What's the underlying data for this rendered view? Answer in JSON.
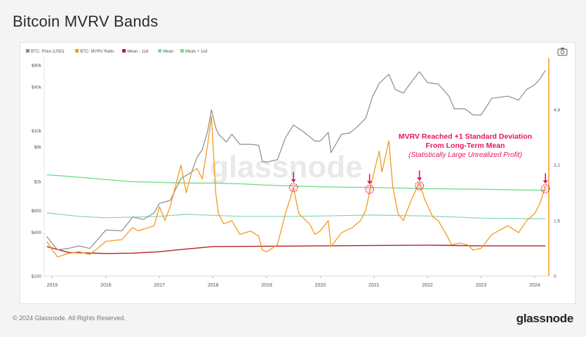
{
  "title": "Bitcoin MVRV Bands",
  "footer": {
    "copyright": "© 2024 Glassnode. All Rights Reserved.",
    "brand": "glassnode"
  },
  "watermark": "glassnode",
  "icons": {
    "camera": "camera-icon"
  },
  "colors": {
    "price": "#8c8c8c",
    "mvrv": "#f39a1e",
    "mean_minus_1sd": "#b3202a",
    "mean": "#7fd6b2",
    "mean_plus_1sd": "#74dd84",
    "annotation": "#e8145f"
  },
  "annotation": {
    "line1": "MVRV Reached +1 Standard Deviation",
    "line2": "From Long-Term Mean",
    "line3": "(Statistically Large Unrealized Profit)"
  },
  "chart_data": {
    "type": "line",
    "legend": [
      {
        "name": "BTC: Price (USD)",
        "color": "#8c8c8c"
      },
      {
        "name": "BTC: MVRV Ratio",
        "color": "#f39a1e"
      },
      {
        "name": "Mean - 1sd",
        "color": "#b3202a"
      },
      {
        "name": "Mean",
        "color": "#7fd6b2"
      },
      {
        "name": "Mean + 1sd",
        "color": "#74dd84"
      }
    ],
    "legend_position": "top-left",
    "x_ticks": [
      "2015",
      "2016",
      "2017",
      "2018",
      "2019",
      "2020",
      "2021",
      "2022",
      "2023",
      "2024"
    ],
    "y_left": {
      "scale": "log",
      "ticks": [
        "$100",
        "$400",
        "$800",
        "$2k",
        "$6k",
        "$10k",
        "$40k",
        "$80k"
      ],
      "tick_values": [
        100,
        400,
        800,
        2000,
        6000,
        10000,
        40000,
        80000
      ]
    },
    "y_right": {
      "scale": "linear",
      "ticks": [
        "0",
        "1.6",
        "3.2",
        "4.8"
      ],
      "tick_values": [
        0,
        1.6,
        3.2,
        4.8
      ],
      "range": [
        0,
        6.2
      ]
    },
    "series": [
      {
        "name": "BTC: Price (USD)",
        "axis": "left",
        "points": [
          [
            2014.9,
            350
          ],
          [
            2015.0,
            280
          ],
          [
            2015.1,
            230
          ],
          [
            2015.3,
            240
          ],
          [
            2015.5,
            260
          ],
          [
            2015.7,
            240
          ],
          [
            2015.85,
            320
          ],
          [
            2016.0,
            430
          ],
          [
            2016.3,
            420
          ],
          [
            2016.5,
            650
          ],
          [
            2016.7,
            600
          ],
          [
            2016.9,
            740
          ],
          [
            2017.0,
            1000
          ],
          [
            2017.2,
            1100
          ],
          [
            2017.4,
            2200
          ],
          [
            2017.6,
            2700
          ],
          [
            2017.7,
            4300
          ],
          [
            2017.8,
            5500
          ],
          [
            2017.9,
            10000
          ],
          [
            2017.97,
            19500
          ],
          [
            2018.05,
            11000
          ],
          [
            2018.1,
            9000
          ],
          [
            2018.25,
            7000
          ],
          [
            2018.35,
            9000
          ],
          [
            2018.5,
            6500
          ],
          [
            2018.7,
            6500
          ],
          [
            2018.85,
            6300
          ],
          [
            2018.92,
            3800
          ],
          [
            2019.0,
            3700
          ],
          [
            2019.2,
            4000
          ],
          [
            2019.35,
            8000
          ],
          [
            2019.5,
            12000
          ],
          [
            2019.7,
            9500
          ],
          [
            2019.9,
            7200
          ],
          [
            2020.0,
            7200
          ],
          [
            2020.15,
            9500
          ],
          [
            2020.2,
            5000
          ],
          [
            2020.4,
            9000
          ],
          [
            2020.55,
            9300
          ],
          [
            2020.7,
            11500
          ],
          [
            2020.85,
            15000
          ],
          [
            2020.97,
            29000
          ],
          [
            2021.1,
            45000
          ],
          [
            2021.28,
            60000
          ],
          [
            2021.4,
            37000
          ],
          [
            2021.55,
            33000
          ],
          [
            2021.7,
            47000
          ],
          [
            2021.85,
            65000
          ],
          [
            2022.0,
            46000
          ],
          [
            2022.2,
            44000
          ],
          [
            2022.4,
            30000
          ],
          [
            2022.5,
            20000
          ],
          [
            2022.7,
            20000
          ],
          [
            2022.85,
            16500
          ],
          [
            2023.0,
            16500
          ],
          [
            2023.2,
            28000
          ],
          [
            2023.5,
            30000
          ],
          [
            2023.7,
            26500
          ],
          [
            2023.85,
            37000
          ],
          [
            2024.0,
            43000
          ],
          [
            2024.1,
            52000
          ],
          [
            2024.2,
            68000
          ]
        ]
      },
      {
        "name": "BTC: MVRV Ratio",
        "axis": "right",
        "points": [
          [
            2014.9,
            1.0
          ],
          [
            2015.0,
            0.75
          ],
          [
            2015.1,
            0.55
          ],
          [
            2015.3,
            0.65
          ],
          [
            2015.5,
            0.7
          ],
          [
            2015.7,
            0.62
          ],
          [
            2015.85,
            0.8
          ],
          [
            2016.0,
            1.0
          ],
          [
            2016.3,
            1.05
          ],
          [
            2016.5,
            1.4
          ],
          [
            2016.6,
            1.3
          ],
          [
            2016.9,
            1.45
          ],
          [
            2017.0,
            2.0
          ],
          [
            2017.1,
            1.6
          ],
          [
            2017.2,
            2.0
          ],
          [
            2017.4,
            3.2
          ],
          [
            2017.5,
            2.4
          ],
          [
            2017.6,
            3.0
          ],
          [
            2017.7,
            3.1
          ],
          [
            2017.8,
            2.8
          ],
          [
            2017.9,
            3.8
          ],
          [
            2017.97,
            4.6
          ],
          [
            2018.05,
            2.4
          ],
          [
            2018.1,
            1.8
          ],
          [
            2018.2,
            1.5
          ],
          [
            2018.35,
            1.6
          ],
          [
            2018.5,
            1.2
          ],
          [
            2018.7,
            1.3
          ],
          [
            2018.85,
            1.15
          ],
          [
            2018.92,
            0.75
          ],
          [
            2019.0,
            0.7
          ],
          [
            2019.2,
            0.9
          ],
          [
            2019.35,
            1.8
          ],
          [
            2019.5,
            2.55
          ],
          [
            2019.6,
            1.8
          ],
          [
            2019.8,
            1.5
          ],
          [
            2019.9,
            1.2
          ],
          [
            2020.0,
            1.3
          ],
          [
            2020.15,
            1.6
          ],
          [
            2020.2,
            0.85
          ],
          [
            2020.4,
            1.25
          ],
          [
            2020.6,
            1.4
          ],
          [
            2020.75,
            1.6
          ],
          [
            2020.85,
            1.9
          ],
          [
            2020.97,
            2.8
          ],
          [
            2021.1,
            3.6
          ],
          [
            2021.15,
            3.0
          ],
          [
            2021.28,
            3.9
          ],
          [
            2021.35,
            2.6
          ],
          [
            2021.45,
            1.8
          ],
          [
            2021.55,
            1.6
          ],
          [
            2021.7,
            2.2
          ],
          [
            2021.85,
            2.7
          ],
          [
            2021.95,
            2.2
          ],
          [
            2022.1,
            1.7
          ],
          [
            2022.2,
            1.6
          ],
          [
            2022.35,
            1.2
          ],
          [
            2022.45,
            0.9
          ],
          [
            2022.6,
            0.95
          ],
          [
            2022.75,
            0.9
          ],
          [
            2022.85,
            0.75
          ],
          [
            2023.0,
            0.8
          ],
          [
            2023.2,
            1.2
          ],
          [
            2023.5,
            1.45
          ],
          [
            2023.7,
            1.25
          ],
          [
            2023.85,
            1.6
          ],
          [
            2024.0,
            1.8
          ],
          [
            2024.1,
            2.1
          ],
          [
            2024.2,
            2.6
          ]
        ]
      },
      {
        "name": "Mean - 1sd",
        "axis": "right",
        "points": [
          [
            2014.9,
            0.85
          ],
          [
            2015.3,
            0.68
          ],
          [
            2016.0,
            0.65
          ],
          [
            2016.5,
            0.66
          ],
          [
            2017.0,
            0.7
          ],
          [
            2017.5,
            0.78
          ],
          [
            2018.0,
            0.85
          ],
          [
            2019.0,
            0.86
          ],
          [
            2020.0,
            0.87
          ],
          [
            2021.0,
            0.88
          ],
          [
            2022.0,
            0.89
          ],
          [
            2023.0,
            0.87
          ],
          [
            2024.2,
            0.87
          ]
        ]
      },
      {
        "name": "Mean",
        "axis": "right",
        "points": [
          [
            2014.9,
            1.82
          ],
          [
            2015.5,
            1.72
          ],
          [
            2016.0,
            1.68
          ],
          [
            2016.5,
            1.7
          ],
          [
            2017.0,
            1.72
          ],
          [
            2017.5,
            1.78
          ],
          [
            2018.0,
            1.75
          ],
          [
            2018.5,
            1.72
          ],
          [
            2019.0,
            1.72
          ],
          [
            2019.5,
            1.72
          ],
          [
            2020.0,
            1.73
          ],
          [
            2021.0,
            1.76
          ],
          [
            2022.0,
            1.73
          ],
          [
            2023.0,
            1.67
          ],
          [
            2024.2,
            1.65
          ]
        ]
      },
      {
        "name": "Mean + 1sd",
        "axis": "right",
        "points": [
          [
            2014.9,
            2.92
          ],
          [
            2015.5,
            2.85
          ],
          [
            2016.0,
            2.78
          ],
          [
            2016.5,
            2.72
          ],
          [
            2017.0,
            2.7
          ],
          [
            2017.5,
            2.68
          ],
          [
            2018.0,
            2.68
          ],
          [
            2018.5,
            2.66
          ],
          [
            2019.0,
            2.62
          ],
          [
            2019.5,
            2.6
          ],
          [
            2020.0,
            2.57
          ],
          [
            2021.0,
            2.55
          ],
          [
            2022.0,
            2.52
          ],
          [
            2023.0,
            2.5
          ],
          [
            2024.2,
            2.47
          ]
        ]
      }
    ],
    "highlights": [
      {
        "x": 2019.5,
        "y": 2.55
      },
      {
        "x": 2020.92,
        "y": 2.5
      },
      {
        "x": 2021.85,
        "y": 2.6
      },
      {
        "x": 2024.2,
        "y": 2.52
      }
    ]
  }
}
